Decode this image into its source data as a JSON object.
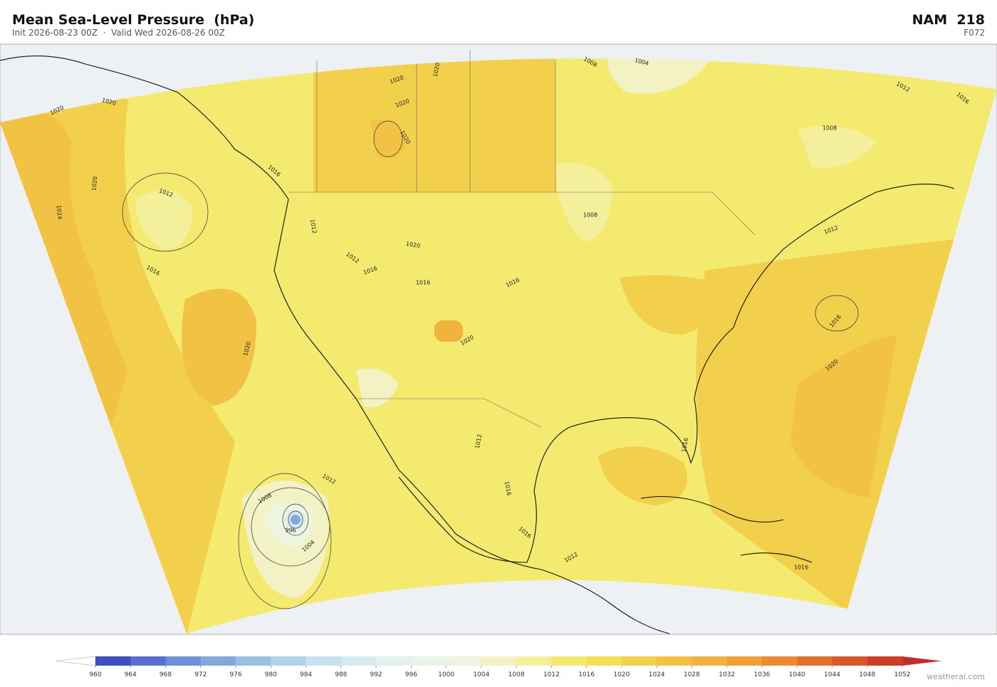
{
  "header": {
    "title": "Mean Sea-Level Pressure  (hPa)",
    "subtitle": "Init 2026-08-23 00Z  ·  Valid Wed 2026-08-26 00Z",
    "model": "NAM  218",
    "forecast": "F072"
  },
  "colorbar": {
    "ticks": [
      960,
      964,
      968,
      972,
      976,
      980,
      984,
      988,
      992,
      996,
      1000,
      1004,
      1008,
      1012,
      1016,
      1020,
      1024,
      1028,
      1032,
      1036,
      1040,
      1044,
      1048,
      1052
    ],
    "colors": [
      "#3d4fc1",
      "#5a6fd0",
      "#6f8fd6",
      "#82a8dc",
      "#98c0e3",
      "#b0d2ea",
      "#c6e2ee",
      "#d5ebef",
      "#e2f0ee",
      "#eaf4eb",
      "#eef5de",
      "#f2f2c4",
      "#f4ef9a",
      "#f4ea70",
      "#f4e05a",
      "#f3d04c",
      "#f2c244",
      "#f1b33e",
      "#ee9f38",
      "#ea8a33",
      "#e2712f",
      "#d8582b",
      "#c93f28"
    ],
    "under_color": "#ffffff",
    "over_color": "#c0302a"
  },
  "contour_labels": [
    1020,
    1020,
    1020,
    1024,
    1012,
    1016,
    1020,
    1012,
    1008,
    1004,
    996,
    1016,
    1012,
    1012,
    1016,
    1020,
    1016,
    1016,
    1008,
    1004,
    1008,
    1012,
    1016,
    1012,
    1016,
    1020,
    1016,
    1012,
    1016,
    1016,
    1012,
    1016,
    1008,
    1020,
    1020,
    1020,
    1020,
    1020
  ],
  "watermark": "weatherai.com"
}
